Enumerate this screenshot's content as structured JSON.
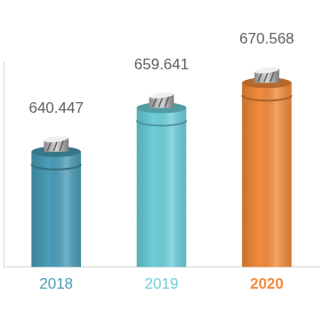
{
  "chart_data": {
    "type": "bar",
    "categories": [
      "2018",
      "2019",
      "2020"
    ],
    "values": [
      640.447,
      659.641,
      670.568
    ],
    "colors": [
      "#4a9db8",
      "#6dcfdc",
      "#f28b3c"
    ],
    "ylim": [
      590,
      680
    ],
    "data_labels": true,
    "tick_labels": "x",
    "grid": false
  }
}
